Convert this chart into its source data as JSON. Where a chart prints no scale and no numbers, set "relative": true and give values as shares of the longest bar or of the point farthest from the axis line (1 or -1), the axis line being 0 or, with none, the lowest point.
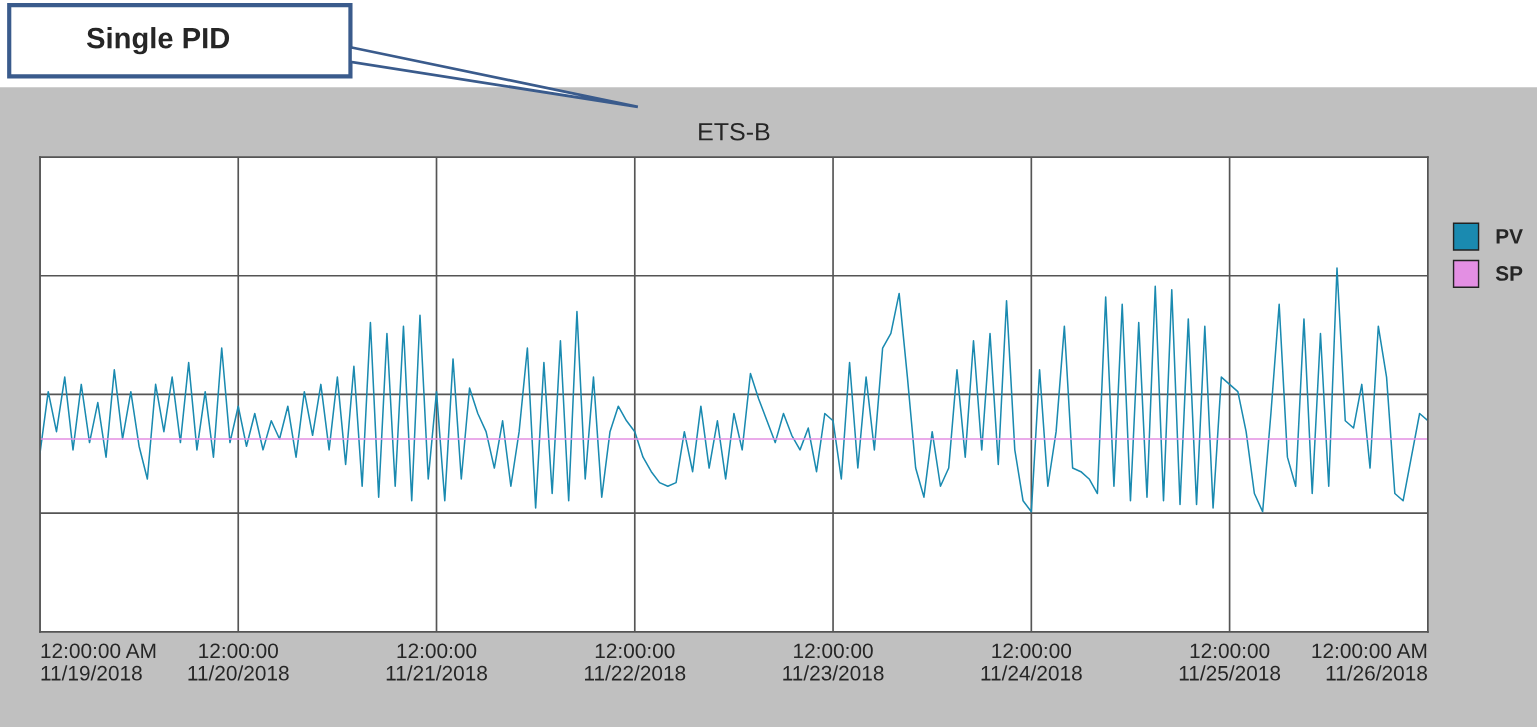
{
  "chart_data": {
    "type": "line",
    "title": "ETS-B",
    "relative": true,
    "grid": true,
    "legend": "top right",
    "tick_labels": "x",
    "annotations": [
      "Single PID"
    ],
    "xlim": [
      "2018-11-19T00:00",
      "2018-11-26T00:00"
    ],
    "xticks": [
      {
        "value": "2018-11-19T00:00",
        "label": "12:00:00 AM\n11/19/2018"
      },
      {
        "value": "2018-11-20T00:00",
        "label": "12:00:00\n11/20/2018"
      },
      {
        "value": "2018-11-21T00:00",
        "label": "12:00:00\n11/21/2018"
      },
      {
        "value": "2018-11-22T00:00",
        "label": "12:00:00\n11/22/2018"
      },
      {
        "value": "2018-11-23T00:00",
        "label": "12:00:00\n11/23/2018"
      },
      {
        "value": "2018-11-24T00:00",
        "label": "12:00:00\n11/24/2018"
      },
      {
        "value": "2018-11-25T00:00",
        "label": "12:00:00\n11/25/2018"
      },
      {
        "value": "2018-11-26T00:00",
        "label": "12:00:00 AM\n11/26/2018"
      }
    ],
    "series": [
      {
        "name": "PV",
        "color": "#1a8ab0",
        "x": [
          "2018-11-19T00:00",
          "2018-11-19T01:00",
          "2018-11-19T02:00",
          "2018-11-19T03:00",
          "2018-11-19T04:00",
          "2018-11-19T05:00",
          "2018-11-19T06:00",
          "2018-11-19T07:00",
          "2018-11-19T08:00",
          "2018-11-19T09:00",
          "2018-11-19T10:00",
          "2018-11-19T11:00",
          "2018-11-19T12:00",
          "2018-11-19T13:00",
          "2018-11-19T14:00",
          "2018-11-19T15:00",
          "2018-11-19T16:00",
          "2018-11-19T17:00",
          "2018-11-19T18:00",
          "2018-11-19T19:00",
          "2018-11-19T20:00",
          "2018-11-19T21:00",
          "2018-11-19T22:00",
          "2018-11-19T23:00",
          "2018-11-20T00:00",
          "2018-11-20T01:00",
          "2018-11-20T02:00",
          "2018-11-20T03:00",
          "2018-11-20T04:00",
          "2018-11-20T05:00",
          "2018-11-20T06:00",
          "2018-11-20T07:00",
          "2018-11-20T08:00",
          "2018-11-20T09:00",
          "2018-11-20T10:00",
          "2018-11-20T11:00",
          "2018-11-20T12:00",
          "2018-11-20T13:00",
          "2018-11-20T14:00",
          "2018-11-20T15:00",
          "2018-11-20T16:00",
          "2018-11-20T17:00",
          "2018-11-20T18:00",
          "2018-11-20T19:00",
          "2018-11-20T20:00",
          "2018-11-20T21:00",
          "2018-11-20T22:00",
          "2018-11-20T23:00",
          "2018-11-21T00:00",
          "2018-11-21T01:00",
          "2018-11-21T02:00",
          "2018-11-21T03:00",
          "2018-11-21T04:00",
          "2018-11-21T05:00",
          "2018-11-21T06:00",
          "2018-11-21T07:00",
          "2018-11-21T08:00",
          "2018-11-21T09:00",
          "2018-11-21T10:00",
          "2018-11-21T11:00",
          "2018-11-21T12:00",
          "2018-11-21T13:00",
          "2018-11-21T14:00",
          "2018-11-21T15:00",
          "2018-11-21T16:00",
          "2018-11-21T17:00",
          "2018-11-21T18:00",
          "2018-11-21T19:00",
          "2018-11-21T20:00",
          "2018-11-21T21:00",
          "2018-11-21T22:00",
          "2018-11-21T23:00",
          "2018-11-22T00:00",
          "2018-11-22T01:00",
          "2018-11-22T02:00",
          "2018-11-22T03:00",
          "2018-11-22T04:00",
          "2018-11-22T05:00",
          "2018-11-22T06:00",
          "2018-11-22T07:00",
          "2018-11-22T08:00",
          "2018-11-22T09:00",
          "2018-11-22T10:00",
          "2018-11-22T11:00",
          "2018-11-22T12:00",
          "2018-11-22T13:00",
          "2018-11-22T14:00",
          "2018-11-22T15:00",
          "2018-11-22T16:00",
          "2018-11-22T17:00",
          "2018-11-22T18:00",
          "2018-11-22T19:00",
          "2018-11-22T20:00",
          "2018-11-22T21:00",
          "2018-11-22T22:00",
          "2018-11-22T23:00",
          "2018-11-23T00:00",
          "2018-11-23T01:00",
          "2018-11-23T02:00",
          "2018-11-23T03:00",
          "2018-11-23T04:00",
          "2018-11-23T05:00",
          "2018-11-23T06:00",
          "2018-11-23T07:00",
          "2018-11-23T08:00",
          "2018-11-23T09:00",
          "2018-11-23T10:00",
          "2018-11-23T11:00",
          "2018-11-23T12:00",
          "2018-11-23T13:00",
          "2018-11-23T14:00",
          "2018-11-23T15:00",
          "2018-11-23T16:00",
          "2018-11-23T17:00",
          "2018-11-23T18:00",
          "2018-11-23T19:00",
          "2018-11-23T20:00",
          "2018-11-23T21:00",
          "2018-11-23T22:00",
          "2018-11-23T23:00",
          "2018-11-24T00:00",
          "2018-11-24T01:00",
          "2018-11-24T02:00",
          "2018-11-24T03:00",
          "2018-11-24T04:00",
          "2018-11-24T05:00",
          "2018-11-24T06:00",
          "2018-11-24T07:00",
          "2018-11-24T08:00",
          "2018-11-24T09:00",
          "2018-11-24T10:00",
          "2018-11-24T11:00",
          "2018-11-24T12:00",
          "2018-11-24T13:00",
          "2018-11-24T14:00",
          "2018-11-24T15:00",
          "2018-11-24T16:00",
          "2018-11-24T17:00",
          "2018-11-24T18:00",
          "2018-11-24T19:00",
          "2018-11-24T20:00",
          "2018-11-24T21:00",
          "2018-11-24T22:00",
          "2018-11-24T23:00",
          "2018-11-25T00:00",
          "2018-11-25T01:00",
          "2018-11-25T02:00",
          "2018-11-25T03:00",
          "2018-11-25T04:00",
          "2018-11-25T05:00",
          "2018-11-25T06:00",
          "2018-11-25T07:00",
          "2018-11-25T08:00",
          "2018-11-25T09:00",
          "2018-11-25T10:00",
          "2018-11-25T11:00",
          "2018-11-25T12:00",
          "2018-11-25T13:00",
          "2018-11-25T14:00",
          "2018-11-25T15:00",
          "2018-11-25T16:00",
          "2018-11-25T17:00",
          "2018-11-25T18:00",
          "2018-11-25T19:00",
          "2018-11-25T20:00",
          "2018-11-25T21:00",
          "2018-11-25T22:00",
          "2018-11-25T23:00",
          "2018-11-26T00:00"
        ],
        "values": [
          0.49,
          0.66,
          0.55,
          0.7,
          0.5,
          0.68,
          0.52,
          0.63,
          0.48,
          0.72,
          0.53,
          0.66,
          0.51,
          0.42,
          0.68,
          0.55,
          0.7,
          0.52,
          0.74,
          0.5,
          0.66,
          0.48,
          0.78,
          0.52,
          0.62,
          0.51,
          0.6,
          0.5,
          0.58,
          0.53,
          0.62,
          0.48,
          0.66,
          0.54,
          0.68,
          0.5,
          0.7,
          0.46,
          0.73,
          0.4,
          0.85,
          0.37,
          0.82,
          0.4,
          0.84,
          0.36,
          0.87,
          0.42,
          0.66,
          0.36,
          0.75,
          0.42,
          0.67,
          0.6,
          0.55,
          0.45,
          0.58,
          0.4,
          0.55,
          0.78,
          0.34,
          0.74,
          0.38,
          0.8,
          0.36,
          0.88,
          0.42,
          0.7,
          0.37,
          0.55,
          0.62,
          0.58,
          0.55,
          0.48,
          0.44,
          0.41,
          0.4,
          0.41,
          0.55,
          0.44,
          0.62,
          0.45,
          0.58,
          0.42,
          0.6,
          0.5,
          0.71,
          0.64,
          0.58,
          0.52,
          0.6,
          0.54,
          0.5,
          0.56,
          0.44,
          0.6,
          0.58,
          0.42,
          0.74,
          0.45,
          0.7,
          0.5,
          0.78,
          0.82,
          0.93,
          0.7,
          0.45,
          0.37,
          0.55,
          0.4,
          0.45,
          0.72,
          0.48,
          0.8,
          0.5,
          0.82,
          0.46,
          0.91,
          0.5,
          0.36,
          0.33,
          0.72,
          0.4,
          0.55,
          0.84,
          0.45,
          0.44,
          0.42,
          0.38,
          0.92,
          0.4,
          0.9,
          0.36,
          0.85,
          0.37,
          0.95,
          0.36,
          0.94,
          0.35,
          0.86,
          0.35,
          0.84,
          0.34,
          0.7,
          0.68,
          0.66,
          0.55,
          0.38,
          0.33,
          0.6,
          0.9,
          0.48,
          0.4,
          0.86,
          0.38,
          0.82,
          0.4,
          1.0,
          0.58,
          0.56,
          0.68,
          0.45,
          0.84,
          0.7,
          0.38,
          0.36,
          0.48,
          0.6,
          0.58
        ]
      },
      {
        "name": "SP",
        "color": "#e38fe3",
        "x": [
          "2018-11-19T00:00",
          "2018-11-26T00:00"
        ],
        "values": [
          0.53,
          0.53
        ]
      }
    ]
  }
}
